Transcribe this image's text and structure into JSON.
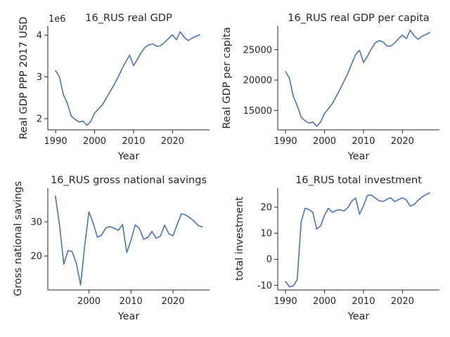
{
  "chart_data": [
    {
      "type": "line",
      "title": "16_RUS real GDP",
      "xlabel": "Year",
      "ylabel": "Real GDP PPP 2017 USD",
      "offset_label": "1e6",
      "xlim": [
        1988,
        2029.5
      ],
      "ylim": [
        1.73,
        4.22
      ],
      "xticks": [
        1990,
        2000,
        2010,
        2020
      ],
      "yticks": [
        2,
        3,
        4
      ],
      "series": [
        {
          "x": [
            1990,
            1991,
            1992,
            1993,
            1994,
            1995,
            1996,
            1997,
            1998,
            1999,
            2000,
            2001,
            2002,
            2003,
            2004,
            2005,
            2006,
            2007,
            2008,
            2009,
            2010,
            2011,
            2012,
            2013,
            2014,
            2015,
            2016,
            2017,
            2018,
            2019,
            2020,
            2021,
            2022,
            2023,
            2024,
            2025,
            2026,
            2027
          ],
          "values": [
            3.15,
            3.0,
            2.57,
            2.37,
            2.06,
            1.98,
            1.92,
            1.94,
            1.84,
            1.93,
            2.13,
            2.23,
            2.33,
            2.49,
            2.65,
            2.81,
            2.99,
            3.19,
            3.36,
            3.52,
            3.27,
            3.42,
            3.59,
            3.71,
            3.77,
            3.79,
            3.73,
            3.75,
            3.83,
            3.92,
            4.01,
            3.89,
            4.08,
            3.95,
            3.87,
            3.93,
            3.97,
            4.01
          ]
        }
      ]
    },
    {
      "type": "line",
      "title": "16_RUS real GDP per capita",
      "xlabel": "Year",
      "ylabel": "Real GDP per capita",
      "xlim": [
        1988,
        2029.5
      ],
      "ylim": [
        11800,
        28900
      ],
      "xticks": [
        1990,
        2000,
        2010,
        2020
      ],
      "yticks": [
        15000,
        20000,
        25000
      ],
      "series": [
        {
          "x": [
            1990,
            1991,
            1992,
            1993,
            1994,
            1995,
            1996,
            1997,
            1998,
            1999,
            2000,
            2001,
            2002,
            2003,
            2004,
            2005,
            2006,
            2007,
            2008,
            2009,
            2010,
            2011,
            2012,
            2013,
            2014,
            2015,
            2016,
            2017,
            2018,
            2019,
            2020,
            2021,
            2022,
            2023,
            2024,
            2025,
            2026,
            2027
          ],
          "values": [
            21400,
            20300,
            17300,
            15800,
            13900,
            13300,
            12900,
            13100,
            12400,
            13100,
            14500,
            15300,
            16100,
            17300,
            18500,
            19800,
            21100,
            22700,
            24200,
            24900,
            22900,
            23900,
            25100,
            26100,
            26500,
            26300,
            25600,
            25600,
            26100,
            26800,
            27400,
            26800,
            28200,
            27300,
            26700,
            27200,
            27500,
            27800
          ]
        }
      ]
    },
    {
      "type": "line",
      "title": "16_RUS gross national savings",
      "xlabel": "Year",
      "ylabel": "Gross national savings",
      "xlim": [
        1990.2,
        2028.7
      ],
      "ylim": [
        10.1,
        39.8
      ],
      "xticks": [
        2000,
        2010,
        2020
      ],
      "yticks": [
        20,
        30
      ],
      "series": [
        {
          "x": [
            1992,
            1993,
            1994,
            1995,
            1996,
            1997,
            1998,
            1999,
            2000,
            2001,
            2002,
            2003,
            2004,
            2005,
            2006,
            2007,
            2008,
            2009,
            2010,
            2011,
            2012,
            2013,
            2014,
            2015,
            2016,
            2017,
            2018,
            2019,
            2020,
            2021,
            2022,
            2023,
            2024,
            2025,
            2026,
            2027
          ],
          "values": [
            37.5,
            29.0,
            17.6,
            21.6,
            21.3,
            17.8,
            11.6,
            23.2,
            32.9,
            29.6,
            25.5,
            26.1,
            28.2,
            28.6,
            28.1,
            27.5,
            29.2,
            21.0,
            24.6,
            29.1,
            28.1,
            24.9,
            25.4,
            27.2,
            25.2,
            25.8,
            29.0,
            26.5,
            25.9,
            29.2,
            32.3,
            32.0,
            31.2,
            30.2,
            28.9,
            28.5
          ]
        }
      ]
    },
    {
      "type": "line",
      "title": "16_RUS total investment",
      "xlabel": "Year",
      "ylabel": "total investment",
      "xlim": [
        1988,
        2029.5
      ],
      "ylim": [
        -11.8,
        27.3
      ],
      "xticks": [
        1990,
        2000,
        2010,
        2020
      ],
      "yticks": [
        -10,
        0,
        10,
        20
      ],
      "series": [
        {
          "x": [
            1990,
            1991,
            1992,
            1993,
            1994,
            1995,
            1996,
            1997,
            1998,
            1999,
            2000,
            2001,
            2002,
            2003,
            2004,
            2005,
            2006,
            2007,
            2008,
            2009,
            2010,
            2011,
            2012,
            2013,
            2014,
            2015,
            2016,
            2017,
            2018,
            2019,
            2020,
            2021,
            2022,
            2023,
            2024,
            2025,
            2026,
            2027
          ],
          "values": [
            -8.5,
            -10.6,
            -10.3,
            -7.8,
            14.3,
            19.6,
            19.1,
            18.0,
            11.6,
            12.8,
            16.9,
            19.6,
            18.0,
            18.8,
            19.0,
            18.5,
            19.8,
            22.3,
            23.5,
            17.3,
            20.5,
            24.5,
            24.7,
            23.5,
            22.5,
            22.2,
            23.0,
            23.6,
            22.1,
            22.9,
            23.6,
            22.8,
            20.4,
            21.0,
            22.6,
            23.9,
            24.8,
            25.5
          ]
        }
      ]
    }
  ]
}
